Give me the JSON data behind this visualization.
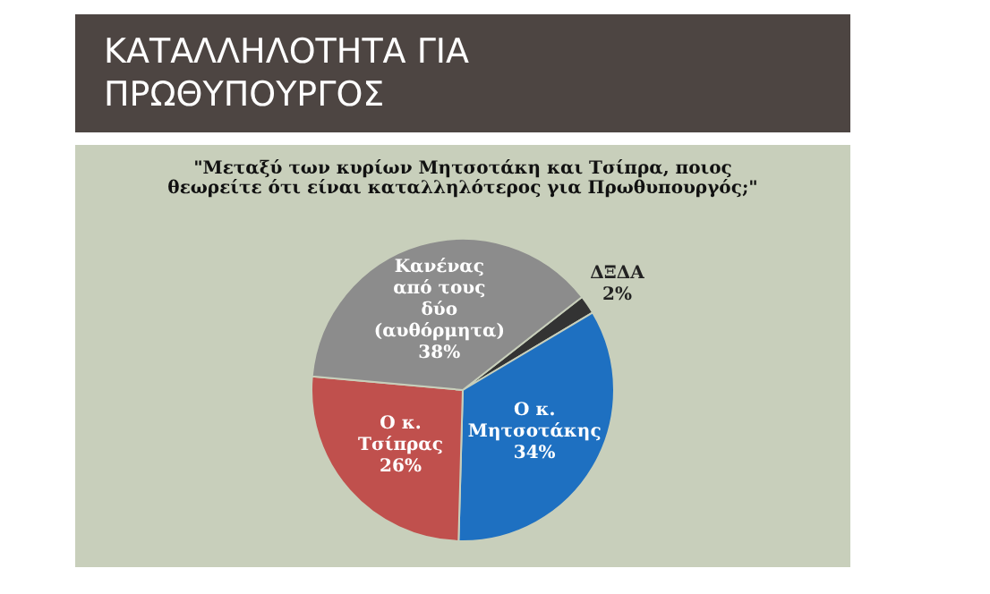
{
  "chart_data": {
    "type": "pie",
    "title": "ΚΑΤΑΛΛΗΛΟΤΗΤΑ ΓΙΑ ΠΡΩΘΥΠΟΥΡΓΟΣ",
    "subtitle": "\"Μεταξύ των κυρίων Μητσοτάκη και Τσίπρα, ποιος θεωρείτε ότι είναι καταλληλότερος για Πρωθυπουργός;\"",
    "categories": [
      "ΔΞΔΑ",
      "Ο κ. Μητσοτάκης",
      "Ο κ. Τσίπρας",
      "Κανένας από τους δύο (αυθόρμητα)"
    ],
    "values": [
      2,
      34,
      26,
      38
    ],
    "colors": [
      "#333333",
      "#1e70c1",
      "#c0504d",
      "#8c8c8c"
    ],
    "value_labels": [
      "2%",
      "34%",
      "26%",
      "38%"
    ],
    "legend": false
  }
}
